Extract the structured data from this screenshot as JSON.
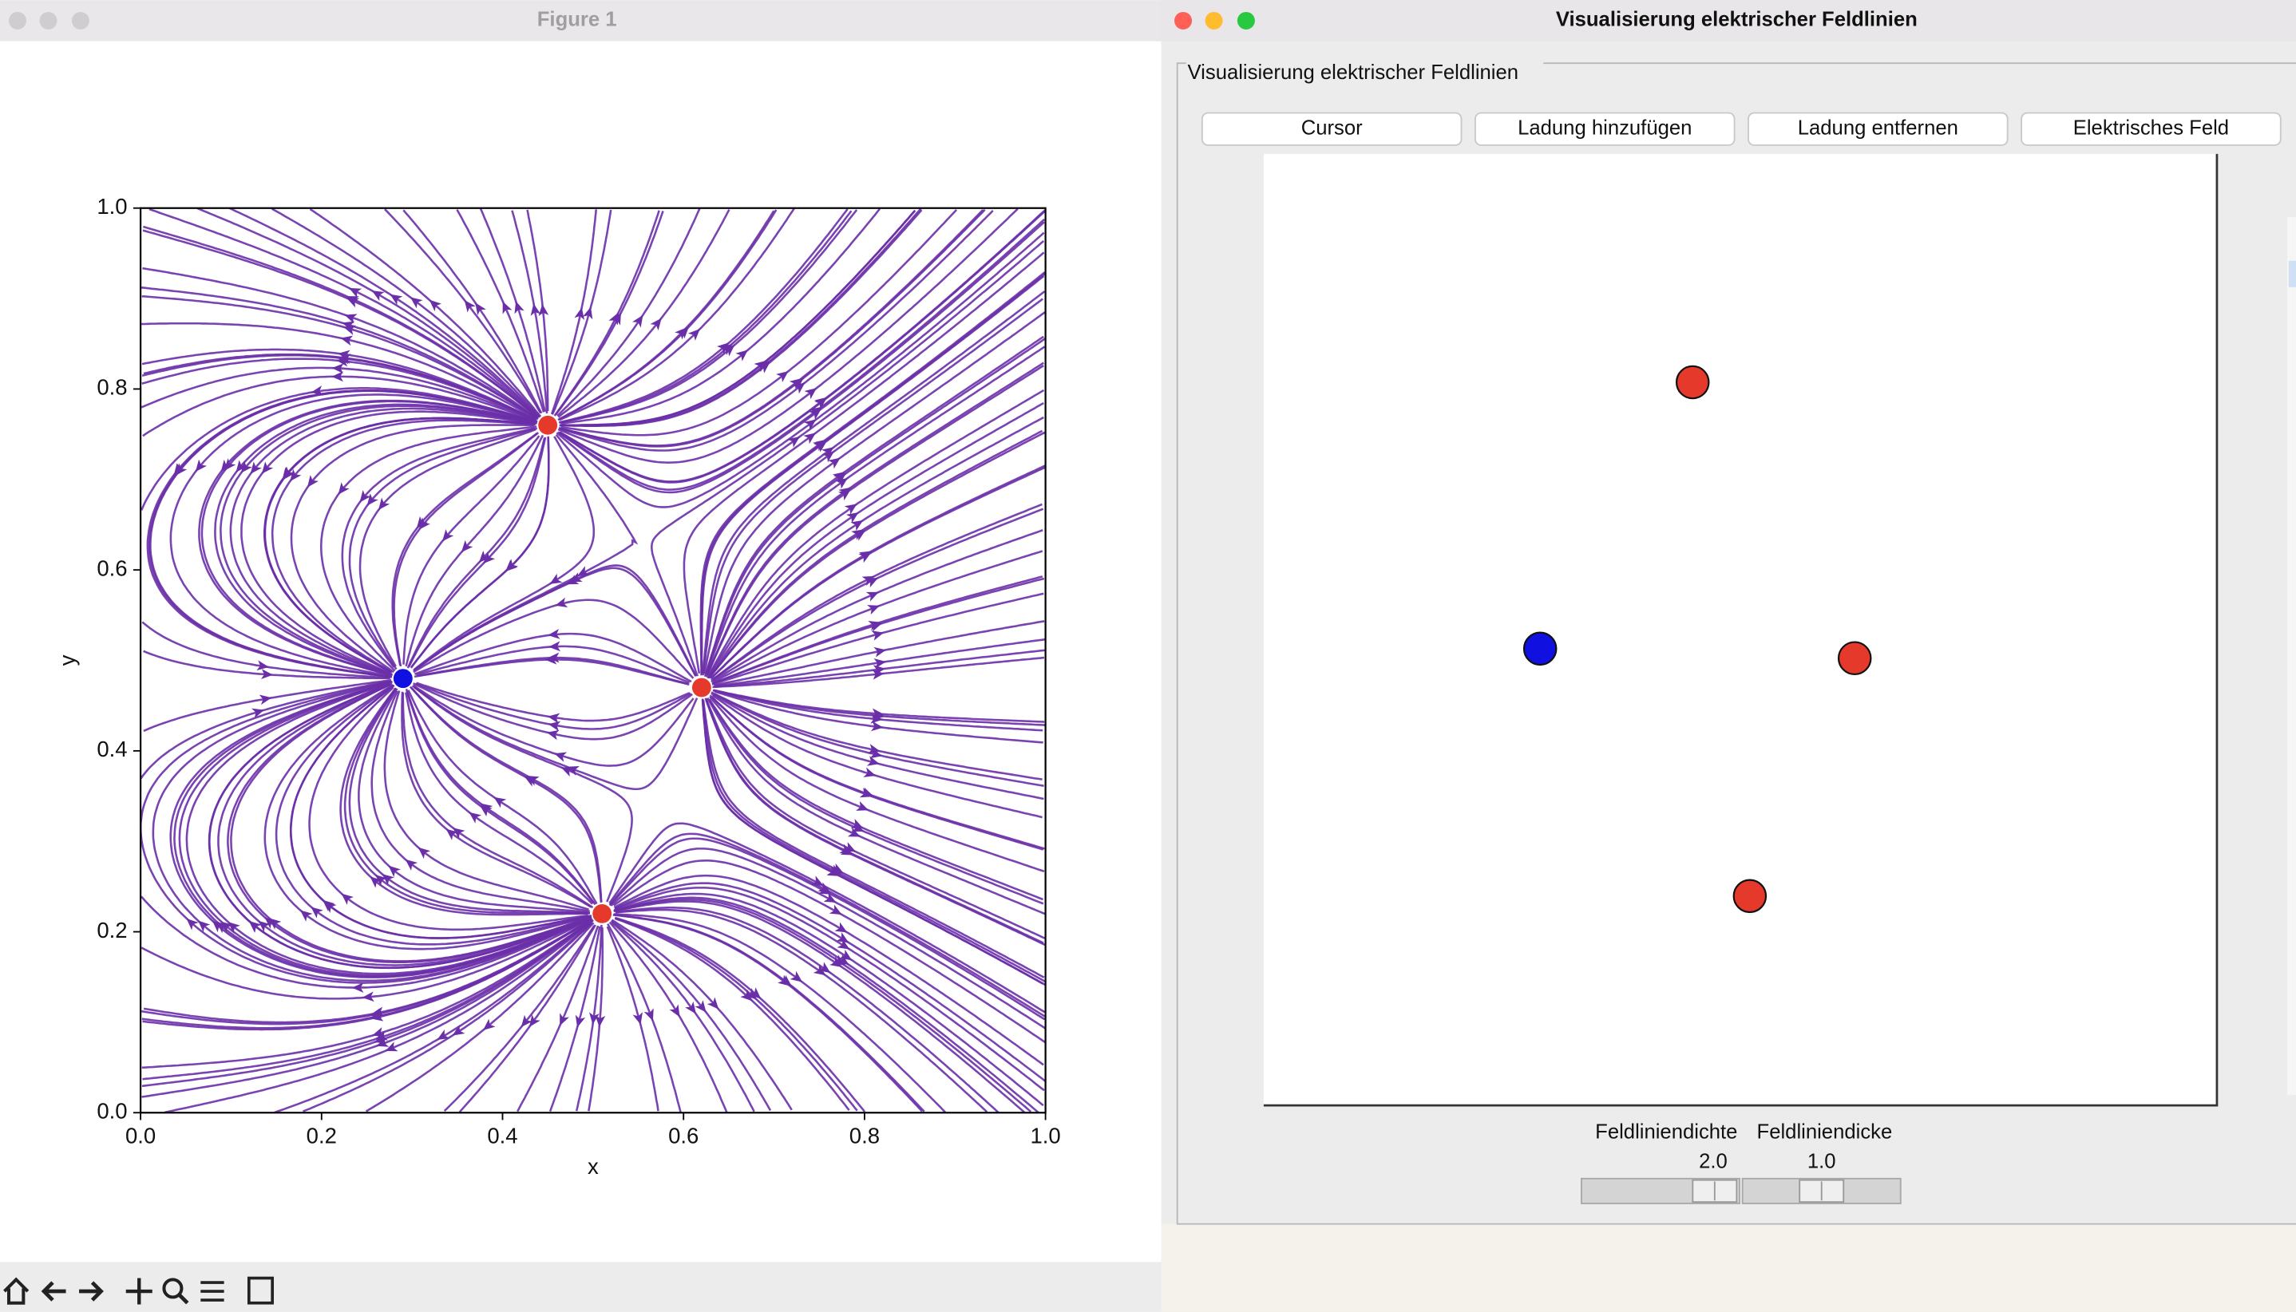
{
  "figure_window": {
    "title": "Figure 1"
  },
  "chart_data": {
    "type": "streamplot",
    "xlabel": "x",
    "ylabel": "y",
    "xlim": [
      0,
      1
    ],
    "ylim": [
      0,
      1
    ],
    "xticks": [
      {
        "value": 0,
        "label": "0.0"
      },
      0.2,
      0.4,
      0.6,
      0.8,
      {
        "value": 1,
        "label": "1.0"
      }
    ],
    "yticks": [
      {
        "value": 0,
        "label": "0.0"
      },
      0.2,
      0.4,
      0.6,
      0.8,
      {
        "value": 1,
        "label": "1.0"
      }
    ],
    "line_color": "#6a2fa8",
    "charges": [
      {
        "x": 0.29,
        "y": 0.48,
        "q": -1,
        "color": "#1010e0"
      },
      {
        "x": 0.45,
        "y": 0.76,
        "q": 1,
        "color": "#e5392b"
      },
      {
        "x": 0.62,
        "y": 0.47,
        "q": 1,
        "color": "#e5392b"
      },
      {
        "x": 0.51,
        "y": 0.22,
        "q": 1,
        "color": "#e5392b"
      }
    ]
  },
  "app_window": {
    "title": "Visualisierung elektrischer Feldlinien",
    "group_label": "Visualisierung elektrischer Feldlinien",
    "buttons": [
      "Cursor",
      "Ladung hinzufügen",
      "Ladung entfernen",
      "Elektrisches Feld"
    ],
    "sliders": [
      {
        "label": "Feldliniendichte",
        "value": "2.0"
      },
      {
        "label": "Feldliniendicke",
        "value": "1.0"
      }
    ]
  }
}
